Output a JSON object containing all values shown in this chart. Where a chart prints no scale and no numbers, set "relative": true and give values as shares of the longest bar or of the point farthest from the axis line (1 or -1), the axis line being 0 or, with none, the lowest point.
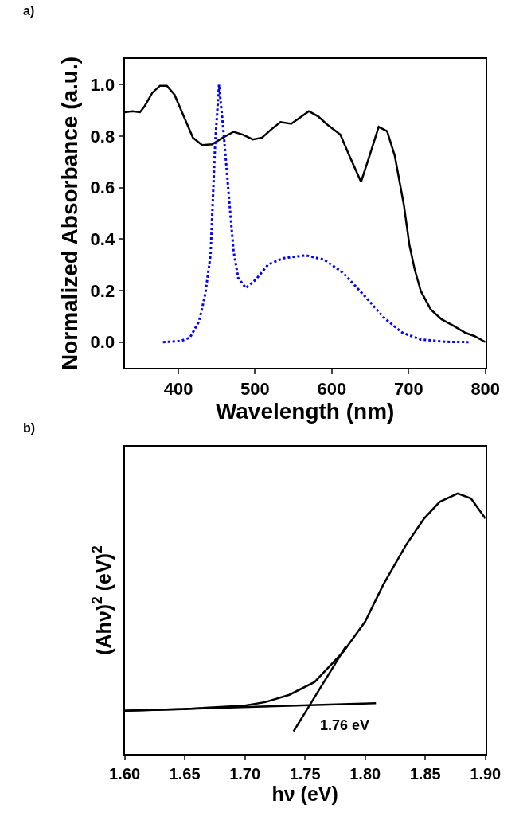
{
  "chart_data": [
    {
      "type": "line",
      "xlabel": "Wavelength (nm)",
      "ylabel": "Normalized Absorbance (a.u.)",
      "annotations": [
        "a)"
      ],
      "xlim": [
        330,
        800
      ],
      "xticks": [
        400,
        500,
        600,
        700,
        800
      ],
      "ylim": [
        -0.1,
        1.1
      ],
      "yticks": [
        {
          "value": 0,
          "label": "0.0"
        },
        0.2,
        0.4,
        0.6,
        0.8,
        {
          "value": 1,
          "label": "1.0"
        }
      ],
      "series": [
        {
          "color": "#000000",
          "line_style": "solid",
          "x": [
            330,
            340,
            350,
            356,
            366,
            376,
            385,
            395,
            407,
            419,
            431,
            444,
            458,
            472,
            484,
            497,
            509,
            521,
            533,
            547,
            558,
            570,
            582,
            594,
            611,
            623,
            638,
            649,
            661,
            672,
            682,
            694,
            701,
            708,
            716,
            729,
            743,
            757,
            774,
            786,
            800
          ],
          "values": [
            0.893,
            0.897,
            0.893,
            0.916,
            0.968,
            0.996,
            0.996,
            0.961,
            0.877,
            0.794,
            0.765,
            0.768,
            0.794,
            0.817,
            0.806,
            0.787,
            0.794,
            0.826,
            0.855,
            0.848,
            0.871,
            0.897,
            0.877,
            0.845,
            0.806,
            0.723,
            0.622,
            0.723,
            0.836,
            0.819,
            0.723,
            0.529,
            0.378,
            0.281,
            0.197,
            0.126,
            0.088,
            0.066,
            0.036,
            0.023,
            0.0
          ]
        },
        {
          "color": "#0000ff",
          "line_style": "dotted",
          "x": [
            380,
            403,
            415,
            427,
            435,
            442,
            448,
            453,
            459,
            468,
            472,
            478,
            488,
            501,
            517,
            537,
            566,
            590,
            615,
            643,
            668,
            692,
            716,
            749,
            778
          ],
          "values": [
            0.0,
            0.004,
            0.017,
            0.081,
            0.185,
            0.339,
            0.774,
            1.0,
            0.813,
            0.49,
            0.352,
            0.249,
            0.21,
            0.243,
            0.301,
            0.326,
            0.337,
            0.32,
            0.268,
            0.178,
            0.094,
            0.036,
            0.01,
            0.001,
            0.0
          ]
        }
      ]
    },
    {
      "type": "line",
      "relative": true,
      "xlabel": "hν (eV)",
      "ylabel": "(Ahν)$^{2}$ (eV)$^{2}$",
      "annotations": [
        "b)",
        {
          "text": "1.76 eV",
          "x": 1.76,
          "y": 0.19
        }
      ],
      "xlim": [
        1.6,
        1.9
      ],
      "xticks": [
        {
          "value": 1.6,
          "label": "1.60"
        },
        1.65,
        {
          "value": 1.7,
          "label": "1.70"
        },
        1.75,
        {
          "value": 1.8,
          "label": "1.80"
        },
        1.85,
        {
          "value": 1.9,
          "label": "1.90"
        }
      ],
      "series": [
        {
          "color": "#000000",
          "x": [
            1.6,
            1.649,
            1.7,
            1.717,
            1.737,
            1.758,
            1.782,
            1.8,
            1.815,
            1.834,
            1.849,
            1.862,
            1.877,
            1.888,
            1.9
          ],
          "values": [
            0.166,
            0.172,
            0.186,
            0.199,
            0.227,
            0.276,
            0.393,
            0.508,
            0.649,
            0.802,
            0.904,
            0.968,
            1.0,
            0.981,
            0.904
          ]
        },
        {
          "color": "#000000",
          "x": [
            1.6,
            1.809
          ],
          "values": [
            0.166,
            0.195
          ]
        },
        {
          "color": "#000000",
          "x": [
            1.7405,
            1.784
          ],
          "values": [
            0.087,
            0.413
          ]
        }
      ]
    }
  ]
}
